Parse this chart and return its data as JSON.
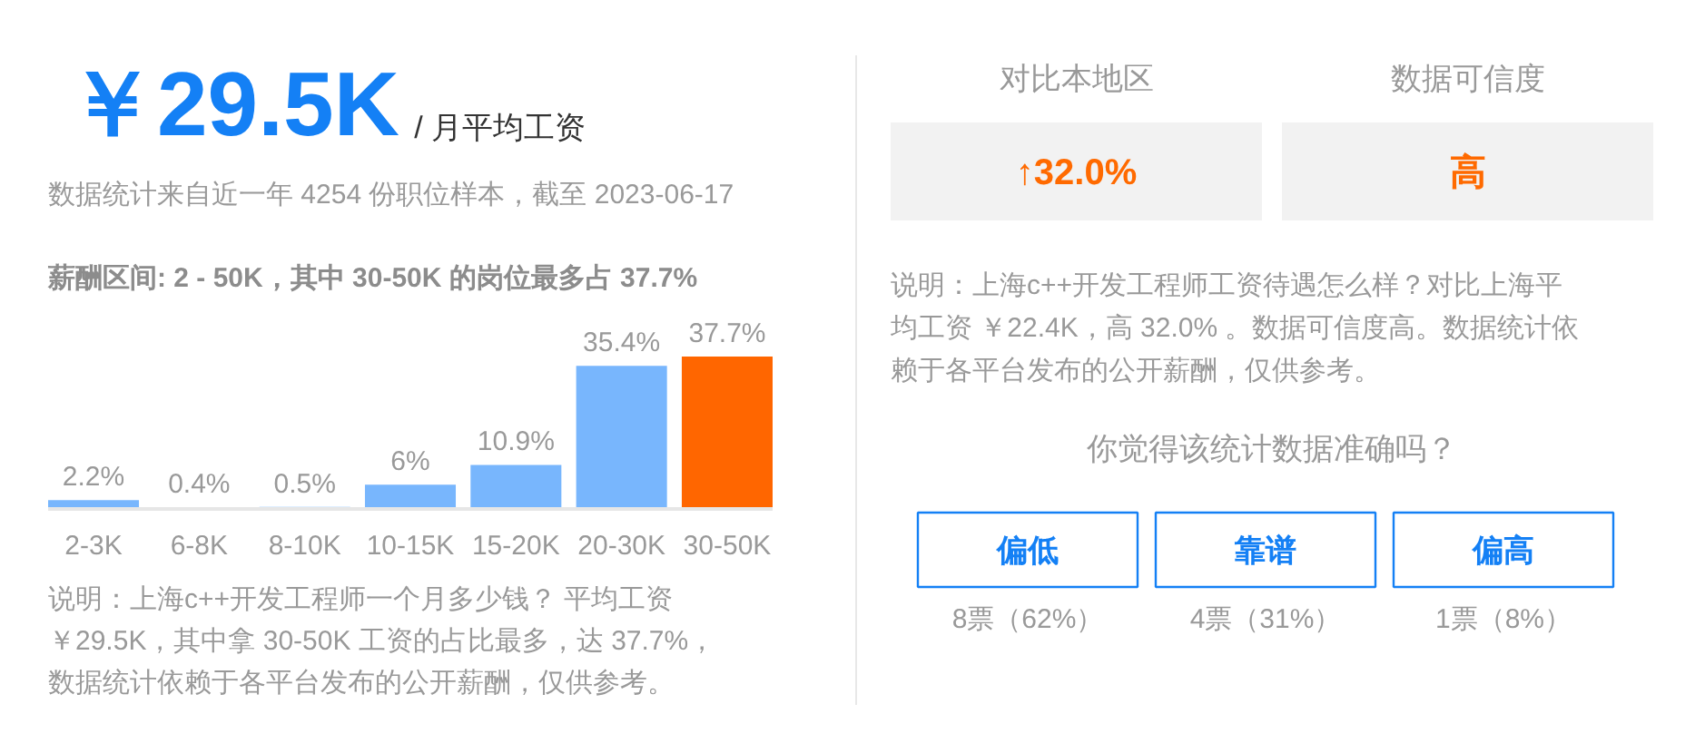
{
  "chart_data": [
    {
      "type": "bar",
      "title": "￥29.5K",
      "subtitle": "/ 月平均工资",
      "annotations": [
        "数据统计来自近一年 4254 份职位样本，截至 2023-06-17",
        "薪酬区间: 2 - 50K，其中 30-50K 的岗位最多占 37.7%",
        "说明：上海c++开发工程师一个月多少钱？ 平均工资￥29.5K，其中拿 30-50K 工资的占比最多，达 37.7%，数据统计依赖于各平台发布的公开薪酬，仅供参考。"
      ],
      "categories": [
        "2-3K",
        "6-8K",
        "8-10K",
        "10-15K",
        "15-20K",
        "20-30K",
        "30-50K"
      ],
      "values": [
        2.2,
        0.4,
        0.5,
        6,
        10.9,
        35.4,
        37.7
      ],
      "colors": [
        "#78b6fd",
        "#78b6fd",
        "#78b6fd",
        "#78b6fd",
        "#78b6fd",
        "#78b6fd",
        "#ff6600"
      ],
      "value_labels": [
        "2.2%",
        "0.4%",
        "0.5%",
        "6%",
        "10.9%",
        "35.4%",
        "37.7%"
      ]
    },
    {
      "type": "other",
      "annotations": [
        "对比本地区",
        "↑32.0%",
        "数据可信度",
        "高",
        "说明：上海c++开发工程师工资待遇怎么样？对比上海平均工资 ￥22.4K，高 32.0% 。数据可信度高。数据统计依赖于各平台发布的公开薪酬，仅供参考。",
        "你觉得该统计数据准确吗？",
        "偏低",
        "靠谱",
        "偏高",
        "8票（62%）",
        "4票（31%）",
        "1票（8%）"
      ]
    }
  ]
}
